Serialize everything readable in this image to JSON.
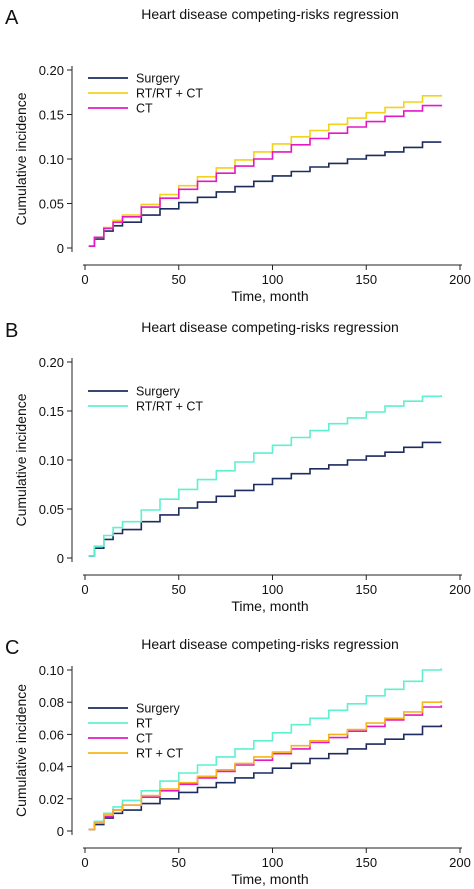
{
  "chart_data": [
    {
      "type": "line",
      "panel_label": "A",
      "title": "Heart disease competing-risks regression",
      "xlabel": "Time, month",
      "ylabel": "Cumulative incidence",
      "xlim": [
        0,
        200
      ],
      "ylim": [
        0,
        0.2
      ],
      "xticks": [
        "0",
        "50",
        "100",
        "150",
        "200"
      ],
      "yticks": [
        "0",
        "0.05",
        "0.10",
        "0.15",
        "0.20"
      ],
      "legend_position": "top-left",
      "grid": false,
      "series": [
        {
          "name": "Surgery",
          "color": "#1d2b5e",
          "x": [
            2,
            5,
            10,
            15,
            20,
            30,
            40,
            50,
            60,
            70,
            80,
            90,
            100,
            110,
            120,
            130,
            140,
            150,
            160,
            170,
            180,
            190
          ],
          "y": [
            0.002,
            0.01,
            0.019,
            0.025,
            0.029,
            0.037,
            0.044,
            0.051,
            0.057,
            0.063,
            0.069,
            0.075,
            0.081,
            0.086,
            0.091,
            0.095,
            0.1,
            0.104,
            0.108,
            0.113,
            0.119,
            0.119
          ]
        },
        {
          "name": "RT/RT + CT",
          "color": "#f2d21b",
          "x": [
            2,
            5,
            10,
            15,
            20,
            30,
            40,
            50,
            60,
            70,
            80,
            90,
            100,
            110,
            120,
            130,
            140,
            150,
            160,
            170,
            180,
            190
          ],
          "y": [
            0.002,
            0.012,
            0.023,
            0.031,
            0.037,
            0.049,
            0.06,
            0.07,
            0.08,
            0.09,
            0.099,
            0.108,
            0.117,
            0.125,
            0.132,
            0.139,
            0.146,
            0.152,
            0.158,
            0.164,
            0.171,
            0.172
          ]
        },
        {
          "name": "CT",
          "color": "#e319c4",
          "x": [
            2,
            5,
            10,
            15,
            20,
            30,
            40,
            50,
            60,
            70,
            80,
            90,
            100,
            110,
            120,
            130,
            140,
            150,
            160,
            170,
            180,
            190
          ],
          "y": [
            0.002,
            0.012,
            0.022,
            0.029,
            0.035,
            0.046,
            0.056,
            0.066,
            0.075,
            0.084,
            0.092,
            0.1,
            0.108,
            0.116,
            0.123,
            0.129,
            0.136,
            0.142,
            0.148,
            0.154,
            0.16,
            0.161
          ]
        }
      ]
    },
    {
      "type": "line",
      "panel_label": "B",
      "title": "Heart disease competing-risks regression",
      "xlabel": "Time, month",
      "ylabel": "Cumulative incidence",
      "xlim": [
        0,
        200
      ],
      "ylim": [
        0,
        0.2
      ],
      "xticks": [
        "0",
        "50",
        "100",
        "150",
        "200"
      ],
      "yticks": [
        "0",
        "0.05",
        "0.10",
        "0.15",
        "0.20"
      ],
      "legend_position": "top-left",
      "grid": false,
      "series": [
        {
          "name": "Surgery",
          "color": "#1d2b5e",
          "x": [
            2,
            5,
            10,
            15,
            20,
            30,
            40,
            50,
            60,
            70,
            80,
            90,
            100,
            110,
            120,
            130,
            140,
            150,
            160,
            170,
            180,
            190
          ],
          "y": [
            0.002,
            0.01,
            0.019,
            0.025,
            0.029,
            0.037,
            0.044,
            0.051,
            0.057,
            0.063,
            0.069,
            0.075,
            0.081,
            0.086,
            0.091,
            0.095,
            0.1,
            0.104,
            0.108,
            0.113,
            0.118,
            0.118
          ]
        },
        {
          "name": "RT/RT + CT",
          "color": "#5ff0cf",
          "x": [
            2,
            5,
            10,
            15,
            20,
            30,
            40,
            50,
            60,
            70,
            80,
            90,
            100,
            110,
            120,
            130,
            140,
            150,
            160,
            170,
            180,
            190
          ],
          "y": [
            0.002,
            0.012,
            0.023,
            0.031,
            0.037,
            0.049,
            0.06,
            0.07,
            0.08,
            0.089,
            0.098,
            0.107,
            0.115,
            0.123,
            0.13,
            0.137,
            0.143,
            0.149,
            0.155,
            0.16,
            0.165,
            0.166
          ]
        }
      ]
    },
    {
      "type": "line",
      "panel_label": "C",
      "title": "Heart disease competing-risks regression",
      "xlabel": "Time, month",
      "ylabel": "Cumulative incidence",
      "xlim": [
        0,
        200
      ],
      "ylim": [
        0,
        0.1
      ],
      "xticks": [
        "0",
        "50",
        "100",
        "150",
        "200"
      ],
      "yticks": [
        "0",
        "0.02",
        "0.04",
        "0.06",
        "0.08",
        "0.10"
      ],
      "legend_position": "top-left",
      "grid": false,
      "series": [
        {
          "name": "Surgery",
          "color": "#1d2b5e",
          "x": [
            2,
            5,
            10,
            15,
            20,
            30,
            40,
            50,
            60,
            70,
            80,
            90,
            100,
            110,
            120,
            130,
            140,
            150,
            160,
            170,
            180,
            190
          ],
          "y": [
            0.001,
            0.004,
            0.008,
            0.011,
            0.013,
            0.017,
            0.02,
            0.024,
            0.027,
            0.03,
            0.033,
            0.036,
            0.039,
            0.042,
            0.045,
            0.048,
            0.051,
            0.054,
            0.057,
            0.06,
            0.065,
            0.066
          ]
        },
        {
          "name": "RT",
          "color": "#5ff0cf",
          "x": [
            2,
            5,
            10,
            15,
            20,
            30,
            40,
            50,
            60,
            70,
            80,
            90,
            100,
            110,
            120,
            130,
            140,
            150,
            160,
            170,
            180,
            190
          ],
          "y": [
            0.001,
            0.006,
            0.011,
            0.015,
            0.019,
            0.025,
            0.031,
            0.036,
            0.041,
            0.046,
            0.051,
            0.056,
            0.061,
            0.066,
            0.07,
            0.075,
            0.079,
            0.084,
            0.088,
            0.093,
            0.1,
            0.101
          ]
        },
        {
          "name": "CT",
          "color": "#e319c4",
          "x": [
            2,
            5,
            10,
            15,
            20,
            30,
            40,
            50,
            60,
            70,
            80,
            90,
            100,
            110,
            120,
            130,
            140,
            150,
            160,
            170,
            180,
            190
          ],
          "y": [
            0.001,
            0.005,
            0.009,
            0.013,
            0.016,
            0.021,
            0.025,
            0.029,
            0.033,
            0.037,
            0.041,
            0.044,
            0.048,
            0.051,
            0.055,
            0.058,
            0.062,
            0.065,
            0.069,
            0.072,
            0.077,
            0.078
          ]
        },
        {
          "name": "RT + CT",
          "color": "#f4b61a",
          "x": [
            2,
            5,
            10,
            15,
            20,
            30,
            40,
            50,
            60,
            70,
            80,
            90,
            100,
            110,
            120,
            130,
            140,
            150,
            160,
            170,
            180,
            190
          ],
          "y": [
            0.001,
            0.005,
            0.01,
            0.013,
            0.016,
            0.022,
            0.026,
            0.03,
            0.034,
            0.038,
            0.042,
            0.046,
            0.049,
            0.053,
            0.056,
            0.06,
            0.063,
            0.067,
            0.07,
            0.074,
            0.08,
            0.081
          ]
        }
      ]
    }
  ]
}
